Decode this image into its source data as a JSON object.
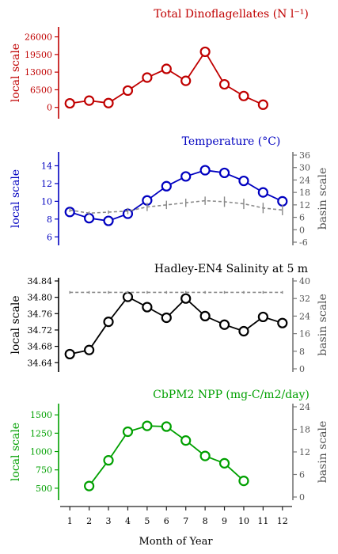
{
  "chart_data": [
    {
      "type": "line",
      "title": "Total Dinoflagellates (N l⁻¹)",
      "ylabel_left": "local scale",
      "color": "#c00000",
      "left_axis": {
        "range": [
          -3000,
          28500
        ],
        "ticks": [
          0,
          6500,
          13000,
          19500,
          26000
        ]
      },
      "series": [
        {
          "axis": "left",
          "style": "solid-circles",
          "x": [
            1,
            2,
            3,
            4,
            5,
            6,
            7,
            8,
            9,
            10,
            11
          ],
          "y": [
            1500,
            2500,
            1600,
            6200,
            11000,
            14200,
            9800,
            20500,
            8500,
            4200,
            1000
          ]
        }
      ]
    },
    {
      "type": "line",
      "title": "Temperature (°C)",
      "ylabel_left": "local scale",
      "ylabel_right": "basin scale",
      "color": "#0000c0",
      "left_axis": {
        "range": [
          5.4,
          15.2
        ],
        "ticks": [
          6,
          8,
          10,
          12,
          14
        ]
      },
      "right_axis": {
        "range": [
          -6,
          36
        ],
        "ticks": [
          -6,
          0,
          6,
          12,
          18,
          24,
          30,
          36
        ]
      },
      "series": [
        {
          "axis": "left",
          "style": "solid-circles",
          "x": [
            1,
            2,
            3,
            4,
            5,
            6,
            7,
            8,
            9,
            10,
            11,
            12
          ],
          "y": [
            8.8,
            8.1,
            7.8,
            8.6,
            10.1,
            11.7,
            12.8,
            13.5,
            13.2,
            12.3,
            11.0,
            10.0
          ]
        },
        {
          "axis": "right",
          "style": "dashed-errorbars",
          "x": [
            1,
            2,
            3,
            4,
            5,
            6,
            7,
            8,
            9,
            10,
            11,
            12
          ],
          "y": [
            9.5,
            8.0,
            8.5,
            9.0,
            11.0,
            12.0,
            13.0,
            14.0,
            13.5,
            12.5,
            10.5,
            9.5
          ],
          "err": [
            1.0,
            0.8,
            0.8,
            1.5,
            2.0,
            2.0,
            2.0,
            2.0,
            2.5,
            2.5,
            2.5,
            2.5
          ]
        }
      ]
    },
    {
      "type": "line",
      "title": "Hadley-EN4 Salinity at 5 m",
      "ylabel_left": "local scale",
      "ylabel_right": "basin scale",
      "color": "#000000",
      "left_axis": {
        "range": [
          34.625,
          34.84
        ],
        "ticks": [
          34.64,
          34.68,
          34.72,
          34.76,
          34.8,
          34.84
        ]
      },
      "right_axis": {
        "range": [
          0,
          40
        ],
        "ticks": [
          0,
          8,
          16,
          24,
          32,
          40
        ]
      },
      "series": [
        {
          "axis": "left",
          "style": "solid-circles",
          "x": [
            1,
            2,
            3,
            4,
            5,
            6,
            7,
            8,
            9,
            10,
            11,
            12
          ],
          "y": [
            34.661,
            34.671,
            34.74,
            34.801,
            34.776,
            34.75,
            34.797,
            34.754,
            34.733,
            34.717,
            34.752,
            34.737
          ]
        },
        {
          "axis": "right",
          "style": "dashed-errorbars",
          "x": [
            1,
            2,
            3,
            4,
            5,
            6,
            7,
            8,
            9,
            10,
            11,
            12
          ],
          "y": [
            34.8,
            34.8,
            34.8,
            34.8,
            34.8,
            34.8,
            34.8,
            34.8,
            34.8,
            34.8,
            34.8,
            34.8
          ],
          "err": [
            0.6,
            0.6,
            0.6,
            0.6,
            0.6,
            0.6,
            0.6,
            0.6,
            0.6,
            0.6,
            0.6,
            0.6
          ]
        }
      ]
    },
    {
      "type": "line",
      "title": "CbPM2 NPP (mg-C/m2/day)",
      "ylabel_left": "local scale",
      "ylabel_right": "basin scale",
      "color": "#00a000",
      "left_axis": {
        "range": [
          380,
          1610
        ],
        "ticks": [
          500,
          750,
          1000,
          1250,
          1500
        ]
      },
      "right_axis": {
        "range": [
          0,
          24
        ],
        "ticks": [
          0,
          6,
          12,
          18,
          24
        ]
      },
      "series": [
        {
          "axis": "left",
          "style": "solid-circles",
          "x": [
            2,
            3,
            4,
            5,
            6,
            7,
            8,
            9,
            10
          ],
          "y": [
            530,
            880,
            1270,
            1350,
            1340,
            1150,
            940,
            840,
            600
          ]
        }
      ]
    }
  ],
  "x_axis": {
    "label": "Month of Year",
    "ticks": [
      1,
      2,
      3,
      4,
      5,
      6,
      7,
      8,
      9,
      10,
      11,
      12
    ],
    "range": [
      0.5,
      12.5
    ]
  }
}
